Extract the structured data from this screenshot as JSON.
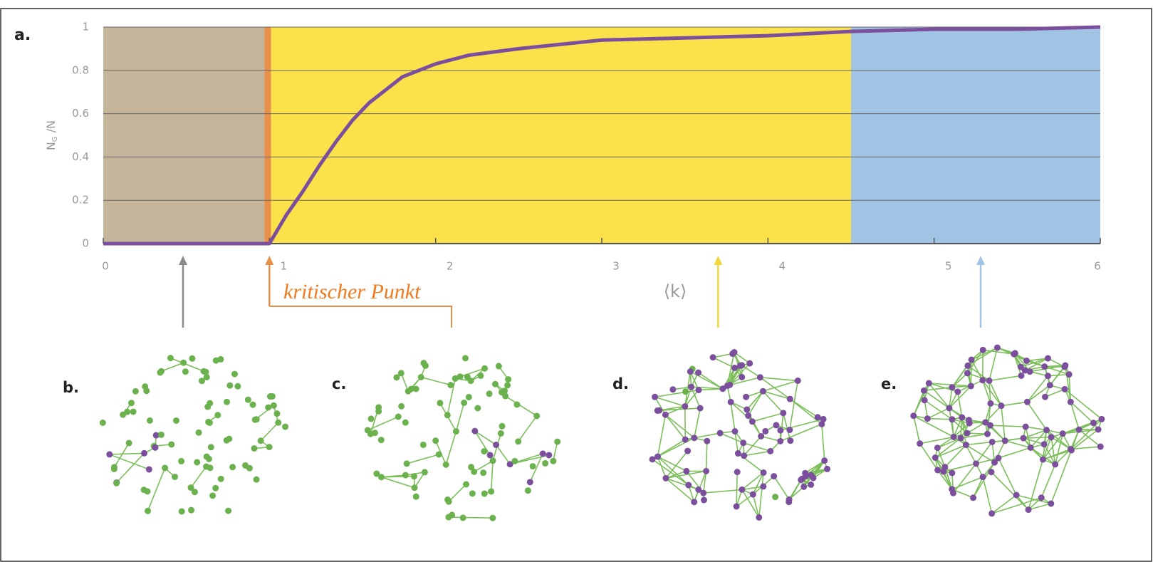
{
  "chart_data": {
    "type": "line",
    "title": "a.",
    "x_label": "⟨k⟩",
    "y_label_parts": [
      "N",
      "G",
      " /N"
    ],
    "x": [
      0,
      0.5,
      1,
      1.1,
      1.2,
      1.3,
      1.4,
      1.5,
      1.6,
      1.8,
      2,
      2.2,
      2.5,
      3,
      3.5,
      4,
      4.5,
      5,
      5.5,
      6
    ],
    "series": [
      {
        "color": "#7b4f9d",
        "values": [
          0,
          0,
          0,
          0.13,
          0.24,
          0.36,
          0.47,
          0.57,
          0.65,
          0.77,
          0.83,
          0.87,
          0.9,
          0.94,
          0.95,
          0.96,
          0.98,
          0.99,
          0.99,
          1
        ]
      }
    ],
    "xlim": [
      0,
      6
    ],
    "ylim": [
      0,
      1
    ],
    "xticks": [
      0,
      1,
      2,
      3,
      4,
      5,
      6
    ],
    "yticks": [
      0,
      0.2,
      0.4,
      0.6,
      0.8,
      1
    ],
    "grid": true,
    "regions": [
      {
        "from": 0,
        "to": 0.97,
        "color": "#c4b49a"
      },
      {
        "from": 0.97,
        "to": 1.01,
        "color": "#e8904a"
      },
      {
        "from": 1.01,
        "to": 4.5,
        "color": "#fbe14a"
      },
      {
        "from": 4.5,
        "to": 6,
        "color": "#a2c4e4"
      }
    ],
    "markers": [
      {
        "x": 0.48,
        "color": "#8a8a8a"
      },
      {
        "x": 1,
        "color": "#e8904a"
      },
      {
        "x": 3.7,
        "color": "#f2d83a"
      },
      {
        "x": 5.28,
        "color": "#a2c4e4"
      }
    ],
    "annotation": "kritischer Punkt",
    "annotation_color": "#f07a1e",
    "panels": [
      "b.",
      "c.",
      "d.",
      "e."
    ],
    "network_colors": {
      "node": "#6bb14d",
      "giant": "#7b4f9d",
      "edge": "#7cbf5a"
    }
  }
}
